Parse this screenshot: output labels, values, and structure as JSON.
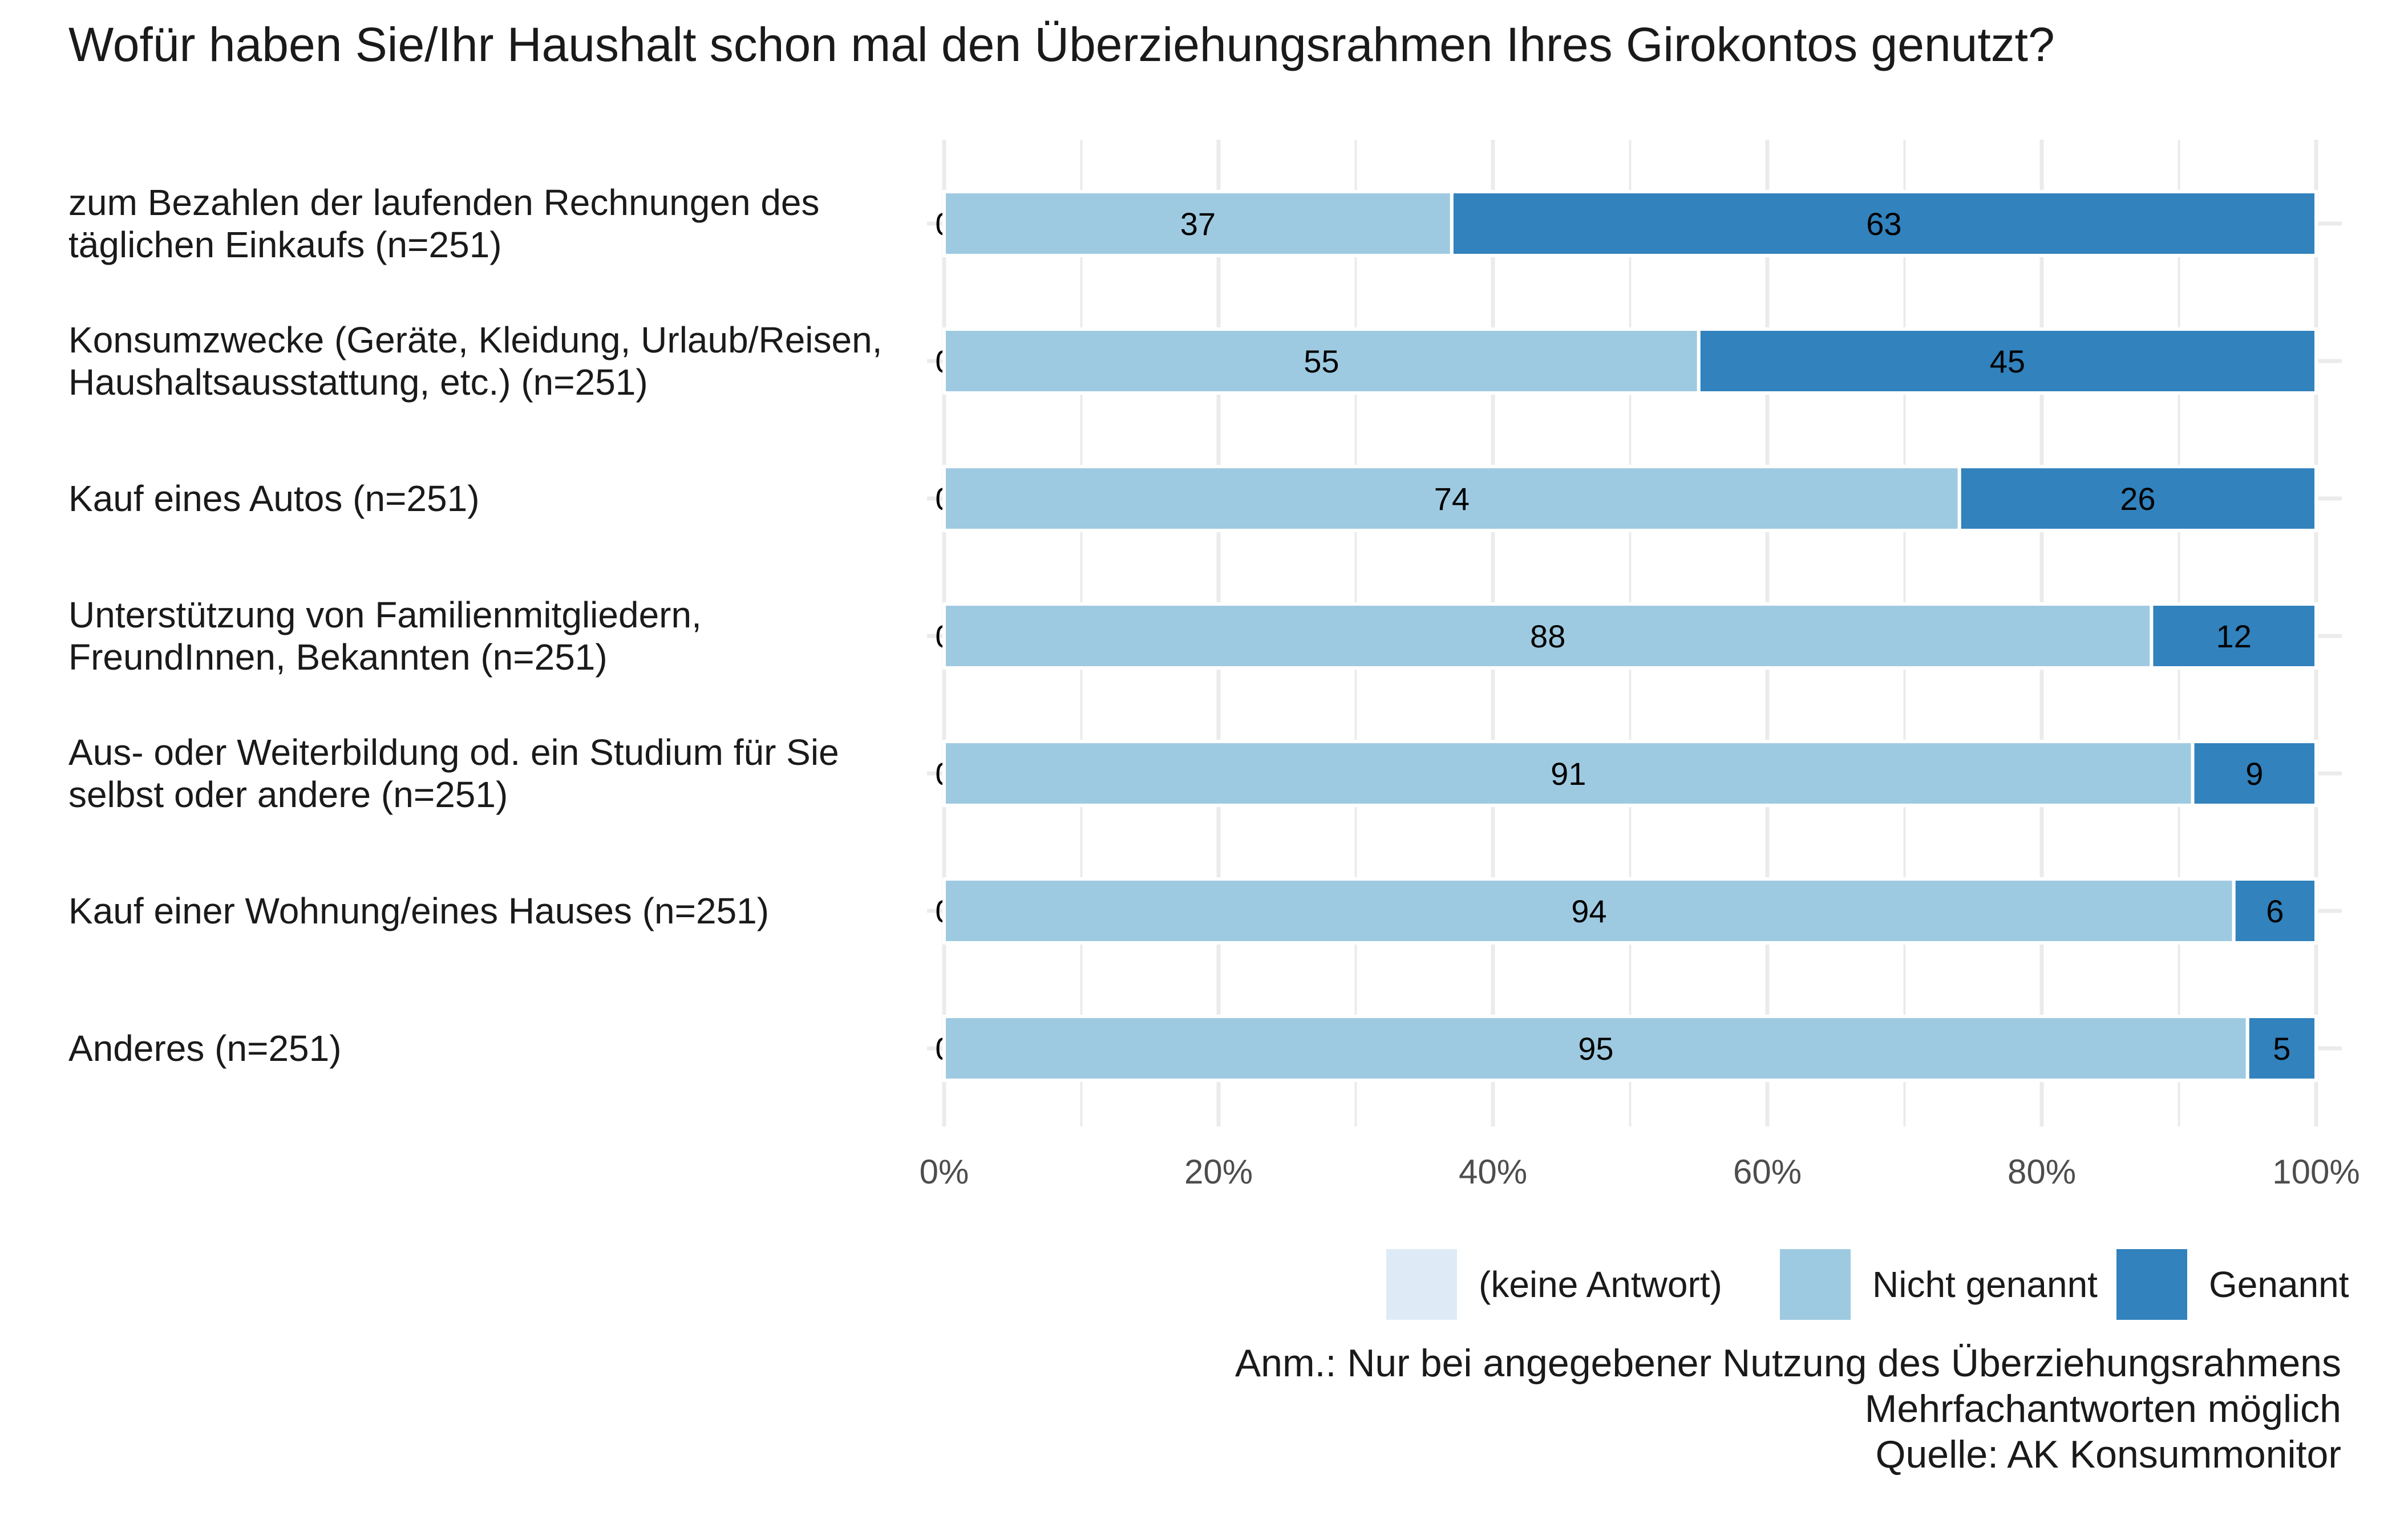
{
  "colors": {
    "keine_antwort": "#deebf7",
    "nicht_genannt": "#9ecae1",
    "genannt": "#3182bd",
    "grid": "#ebebeb",
    "tick_text": "#4d4d4d"
  },
  "chart_data": {
    "type": "bar",
    "orientation": "horizontal",
    "stacked": true,
    "title": "Wofür haben Sie/Ihr Haushalt schon mal den Überziehungsrahmen Ihres Girokontos genutzt?",
    "categories": [
      "zum Bezahlen der laufenden Rechnungen des\ntäglichen Einkaufs (n=251)",
      "Konsumzwecke (Geräte, Kleidung, Urlaub/Reisen,\nHaushaltsausstattung, etc.) (n=251)",
      "Kauf eines Autos (n=251)",
      "Unterstützung von Familienmitgliedern,\nFreundInnen, Bekannten (n=251)",
      "Aus- oder Weiterbildung od. ein Studium für Sie\nselbst oder andere (n=251)",
      "Kauf einer Wohnung/eines Hauses (n=251)",
      "Anderes (n=251)"
    ],
    "series": [
      {
        "name": "(keine Antwort)",
        "values": [
          0,
          0,
          0,
          0,
          0,
          0,
          0
        ]
      },
      {
        "name": "Nicht genannt",
        "values": [
          37,
          55,
          74,
          88,
          91,
          94,
          95
        ]
      },
      {
        "name": "Genannt",
        "values": [
          63,
          45,
          26,
          12,
          9,
          6,
          5
        ]
      }
    ],
    "xlim": [
      0,
      100
    ],
    "x_ticks": [
      0,
      20,
      40,
      60,
      80,
      100
    ],
    "x_tick_labels": [
      "0%",
      "20%",
      "40%",
      "60%",
      "80%",
      "100%"
    ],
    "grid": true,
    "legend_position": "bottom-right"
  },
  "notes": [
    "Anm.: Nur bei angegebener Nutzung des Überziehungsrahmens",
    "Mehrfachantworten möglich",
    "Quelle: AK Konsummonitor"
  ]
}
